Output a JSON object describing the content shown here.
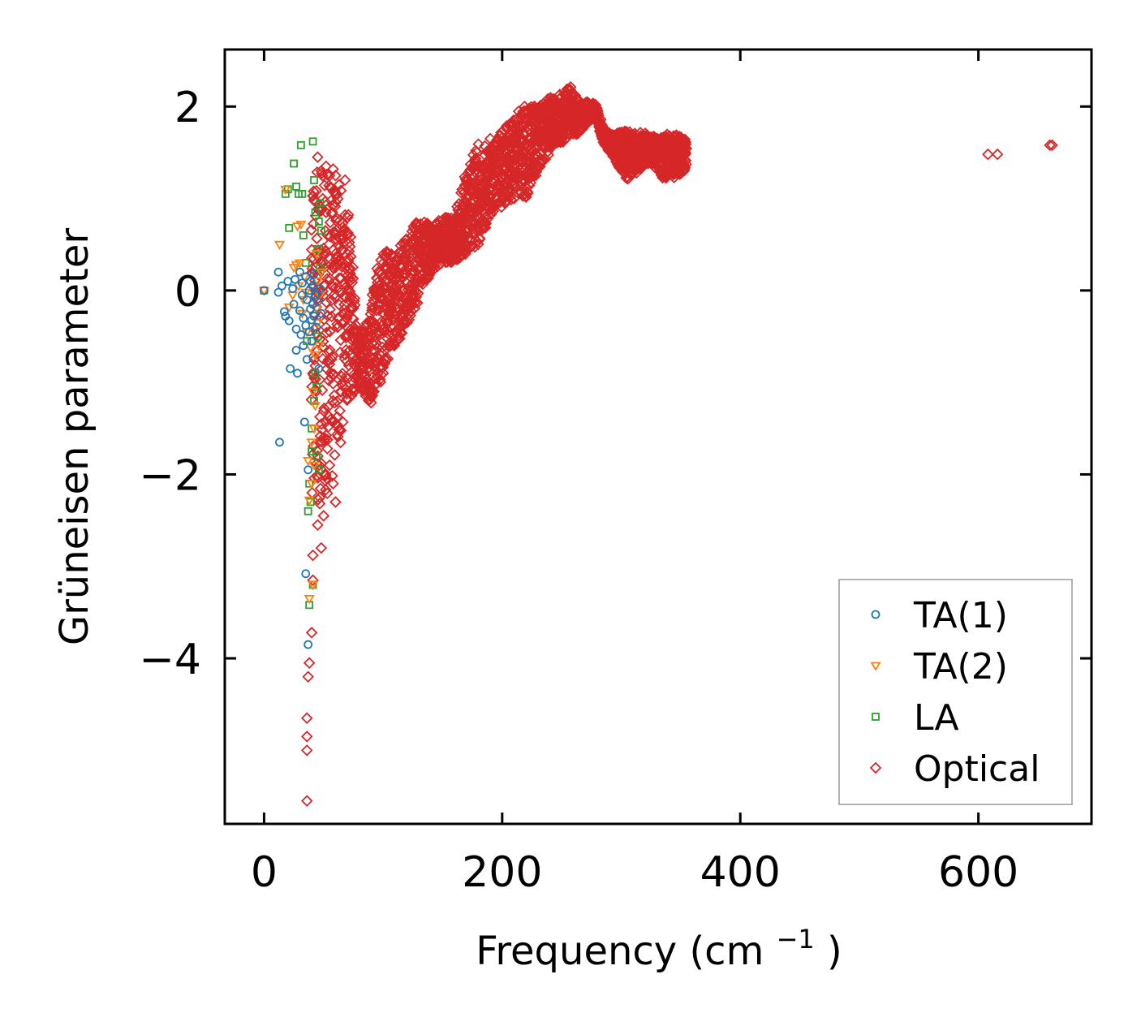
{
  "chart_data": {
    "type": "scatter",
    "title": "",
    "xlabel": "Frequency",
    "xlabel_unit_base": "(cm",
    "xlabel_unit_exp": "−1",
    "xlabel_unit_close": ")",
    "ylabel": "Grüneisen parameter",
    "xlim": [
      -33,
      695
    ],
    "ylim": [
      -5.8,
      2.62
    ],
    "xticks": [
      0,
      200,
      400,
      600
    ],
    "xtick_labels": [
      "0",
      "200",
      "400",
      "600"
    ],
    "yticks": [
      2,
      0,
      -2,
      -4
    ],
    "ytick_labels": [
      "2",
      "0",
      "−2",
      "−4"
    ],
    "grid": false,
    "legend_position": "lower-right",
    "series": [
      {
        "name": "TA(1)",
        "marker": "circle",
        "color": "#1f77b4",
        "points": [
          [
            0,
            0
          ],
          [
            12,
            0.2
          ],
          [
            12,
            -0.02
          ],
          [
            13,
            -1.65
          ],
          [
            15,
            0.05
          ],
          [
            17,
            -0.23
          ],
          [
            18,
            -0.28
          ],
          [
            20,
            0.1
          ],
          [
            21,
            -0.33
          ],
          [
            22,
            -0.85
          ],
          [
            24,
            0.02
          ],
          [
            25,
            -0.15
          ],
          [
            26,
            0.12
          ],
          [
            27,
            -0.42
          ],
          [
            27,
            -0.65
          ],
          [
            28,
            -0.9
          ],
          [
            30,
            0.2
          ],
          [
            30,
            -0.22
          ],
          [
            31,
            -0.48
          ],
          [
            32,
            -0.05
          ],
          [
            32,
            0.08
          ],
          [
            33,
            -0.3
          ],
          [
            33,
            -0.6
          ],
          [
            34,
            -1.43
          ],
          [
            35,
            0.15
          ],
          [
            35,
            -0.38
          ],
          [
            35,
            -3.08
          ],
          [
            36,
            -0.75
          ],
          [
            36,
            -0.1
          ],
          [
            37,
            -1.95
          ],
          [
            37,
            -3.85
          ],
          [
            38,
            0.0
          ],
          [
            38,
            -0.45
          ],
          [
            39,
            -0.2
          ],
          [
            39,
            0.1
          ],
          [
            40,
            -0.32
          ],
          [
            40,
            -0.55
          ],
          [
            41,
            0.05
          ],
          [
            41,
            -0.15
          ],
          [
            42,
            -0.28
          ],
          [
            42,
            0.18
          ],
          [
            43,
            -0.05
          ],
          [
            44,
            -0.4
          ],
          [
            45,
            -0.12
          ],
          [
            46,
            -0.85
          ],
          [
            47,
            0.02
          ],
          [
            48,
            -0.25
          ]
        ]
      },
      {
        "name": "TA(2)",
        "marker": "triangle-down",
        "color": "#ff7f0e",
        "points": [
          [
            0,
            0
          ],
          [
            13,
            0.5
          ],
          [
            18,
            1.1
          ],
          [
            21,
            -0.18
          ],
          [
            24,
            -0.05
          ],
          [
            25,
            0.25
          ],
          [
            27,
            0.28
          ],
          [
            28,
            0.7
          ],
          [
            29,
            0.05
          ],
          [
            30,
            0.3
          ],
          [
            31,
            0.72
          ],
          [
            32,
            -0.25
          ],
          [
            33,
            -0.1
          ],
          [
            34,
            0.15
          ],
          [
            35,
            -0.02
          ],
          [
            36,
            -0.45
          ],
          [
            37,
            -1.85
          ],
          [
            38,
            -3.35
          ],
          [
            38,
            -2.28
          ],
          [
            39,
            -0.62
          ],
          [
            40,
            -1.65
          ],
          [
            40,
            -2.1
          ],
          [
            41,
            -3.2
          ],
          [
            41,
            -1.1
          ],
          [
            42,
            -1.5
          ],
          [
            42,
            -1.9
          ],
          [
            43,
            -0.7
          ],
          [
            43,
            -1.25
          ],
          [
            44,
            0.4
          ],
          [
            44,
            -0.2
          ],
          [
            45,
            -0.35
          ],
          [
            45,
            0.1
          ],
          [
            46,
            -0.6
          ],
          [
            47,
            -0.05
          ],
          [
            48,
            0.2
          ]
        ]
      },
      {
        "name": "LA",
        "marker": "square",
        "color": "#2ca02c",
        "points": [
          [
            0,
            0
          ],
          [
            18,
            1.05
          ],
          [
            20,
            1.1
          ],
          [
            21,
            0.68
          ],
          [
            25,
            1.38
          ],
          [
            27,
            1.13
          ],
          [
            29,
            1.05
          ],
          [
            31,
            1.58
          ],
          [
            32,
            1.05
          ],
          [
            33,
            0.6
          ],
          [
            35,
            0.3
          ],
          [
            36,
            -0.55
          ],
          [
            37,
            -2.4
          ],
          [
            38,
            -2.1
          ],
          [
            38,
            -3.42
          ],
          [
            39,
            -2.3
          ],
          [
            40,
            -1.5
          ],
          [
            40,
            -1.75
          ],
          [
            41,
            -3.2
          ],
          [
            41,
            1.62
          ],
          [
            42,
            1.2
          ],
          [
            42,
            -1.2
          ],
          [
            43,
            0.85
          ],
          [
            43,
            -0.9
          ],
          [
            44,
            -1.05
          ],
          [
            44,
            -1.8
          ],
          [
            45,
            0.45
          ],
          [
            45,
            -0.5
          ],
          [
            46,
            0.75
          ],
          [
            46,
            -1.95
          ],
          [
            47,
            0.95
          ],
          [
            47,
            0.25
          ],
          [
            48,
            0.65
          ]
        ]
      },
      {
        "name": "Optical",
        "marker": "diamond",
        "color": "#d62728",
        "points": [
          [
            36,
            -5.55
          ],
          [
            36,
            -4.65
          ],
          [
            36,
            -4.85
          ],
          [
            36,
            -5.0
          ],
          [
            37,
            -4.2
          ],
          [
            38,
            -4.05
          ],
          [
            40,
            -3.72
          ],
          [
            41,
            -3.15
          ],
          [
            41,
            -2.88
          ],
          [
            45,
            -2.55
          ],
          [
            48,
            -2.8
          ],
          [
            50,
            -2.45
          ],
          [
            45,
            1.45
          ],
          [
            48,
            1.3
          ],
          [
            52,
            1.35
          ],
          [
            55,
            1.25
          ],
          [
            58,
            1.32
          ],
          [
            60,
            1.25
          ],
          [
            63,
            1.15
          ],
          [
            68,
            1.2
          ],
          [
            70,
            0.6
          ],
          [
            72,
            0.1
          ],
          [
            74,
            -0.3
          ],
          [
            65,
            -1.1
          ],
          [
            60,
            -2.3
          ],
          [
            55,
            -1.9
          ],
          [
            50,
            -1.6
          ],
          [
            55,
            -0.8
          ],
          [
            62,
            -0.3
          ],
          [
            60,
            0.4
          ],
          [
            52,
            0.85
          ],
          [
            48,
            0.3
          ],
          [
            52,
            -0.4
          ],
          [
            58,
            -1.2
          ],
          [
            66,
            -1.0
          ],
          [
            70,
            -0.5
          ],
          [
            58,
            -2.1
          ],
          [
            90,
            -1.22
          ],
          [
            190,
            1.65
          ],
          [
            608,
            1.48
          ],
          [
            616,
            1.48
          ],
          [
            660,
            1.58
          ],
          [
            662,
            1.58
          ]
        ]
      }
    ],
    "optical_band": {
      "x_start": 40,
      "x_end": 355,
      "x_step": 0.8,
      "y_anchors": [
        [
          40,
          -2.2,
          1.3
        ],
        [
          50,
          -2.4,
          1.3
        ],
        [
          58,
          -2.0,
          1.25
        ],
        [
          65,
          -1.6,
          1.1
        ],
        [
          72,
          -1.3,
          0.8
        ],
        [
          78,
          -1.0,
          -0.5
        ],
        [
          88,
          -1.2,
          -0.3
        ],
        [
          95,
          -1.1,
          0.3
        ],
        [
          100,
          -0.9,
          0.45
        ],
        [
          110,
          -0.6,
          0.4
        ],
        [
          120,
          -0.4,
          0.6
        ],
        [
          130,
          -0.1,
          0.8
        ],
        [
          140,
          0.2,
          0.7
        ],
        [
          150,
          0.3,
          0.8
        ],
        [
          160,
          0.3,
          0.8
        ],
        [
          170,
          0.4,
          1.3
        ],
        [
          180,
          0.5,
          1.6
        ],
        [
          190,
          0.8,
          1.55
        ],
        [
          200,
          0.9,
          1.75
        ],
        [
          210,
          1.0,
          1.9
        ],
        [
          220,
          1.0,
          2.05
        ],
        [
          230,
          1.3,
          2.0
        ],
        [
          240,
          1.5,
          2.1
        ],
        [
          250,
          1.6,
          2.15
        ],
        [
          258,
          1.7,
          2.22
        ],
        [
          265,
          1.7,
          2.05
        ],
        [
          270,
          1.8,
          2.05
        ],
        [
          278,
          1.9,
          2.05
        ],
        [
          285,
          1.6,
          1.75
        ],
        [
          295,
          1.4,
          1.7
        ],
        [
          305,
          1.2,
          1.75
        ],
        [
          315,
          1.3,
          1.72
        ],
        [
          325,
          1.4,
          1.7
        ],
        [
          330,
          1.3,
          1.65
        ],
        [
          335,
          1.2,
          1.7
        ],
        [
          345,
          1.2,
          1.7
        ],
        [
          355,
          1.3,
          1.65
        ]
      ]
    }
  }
}
